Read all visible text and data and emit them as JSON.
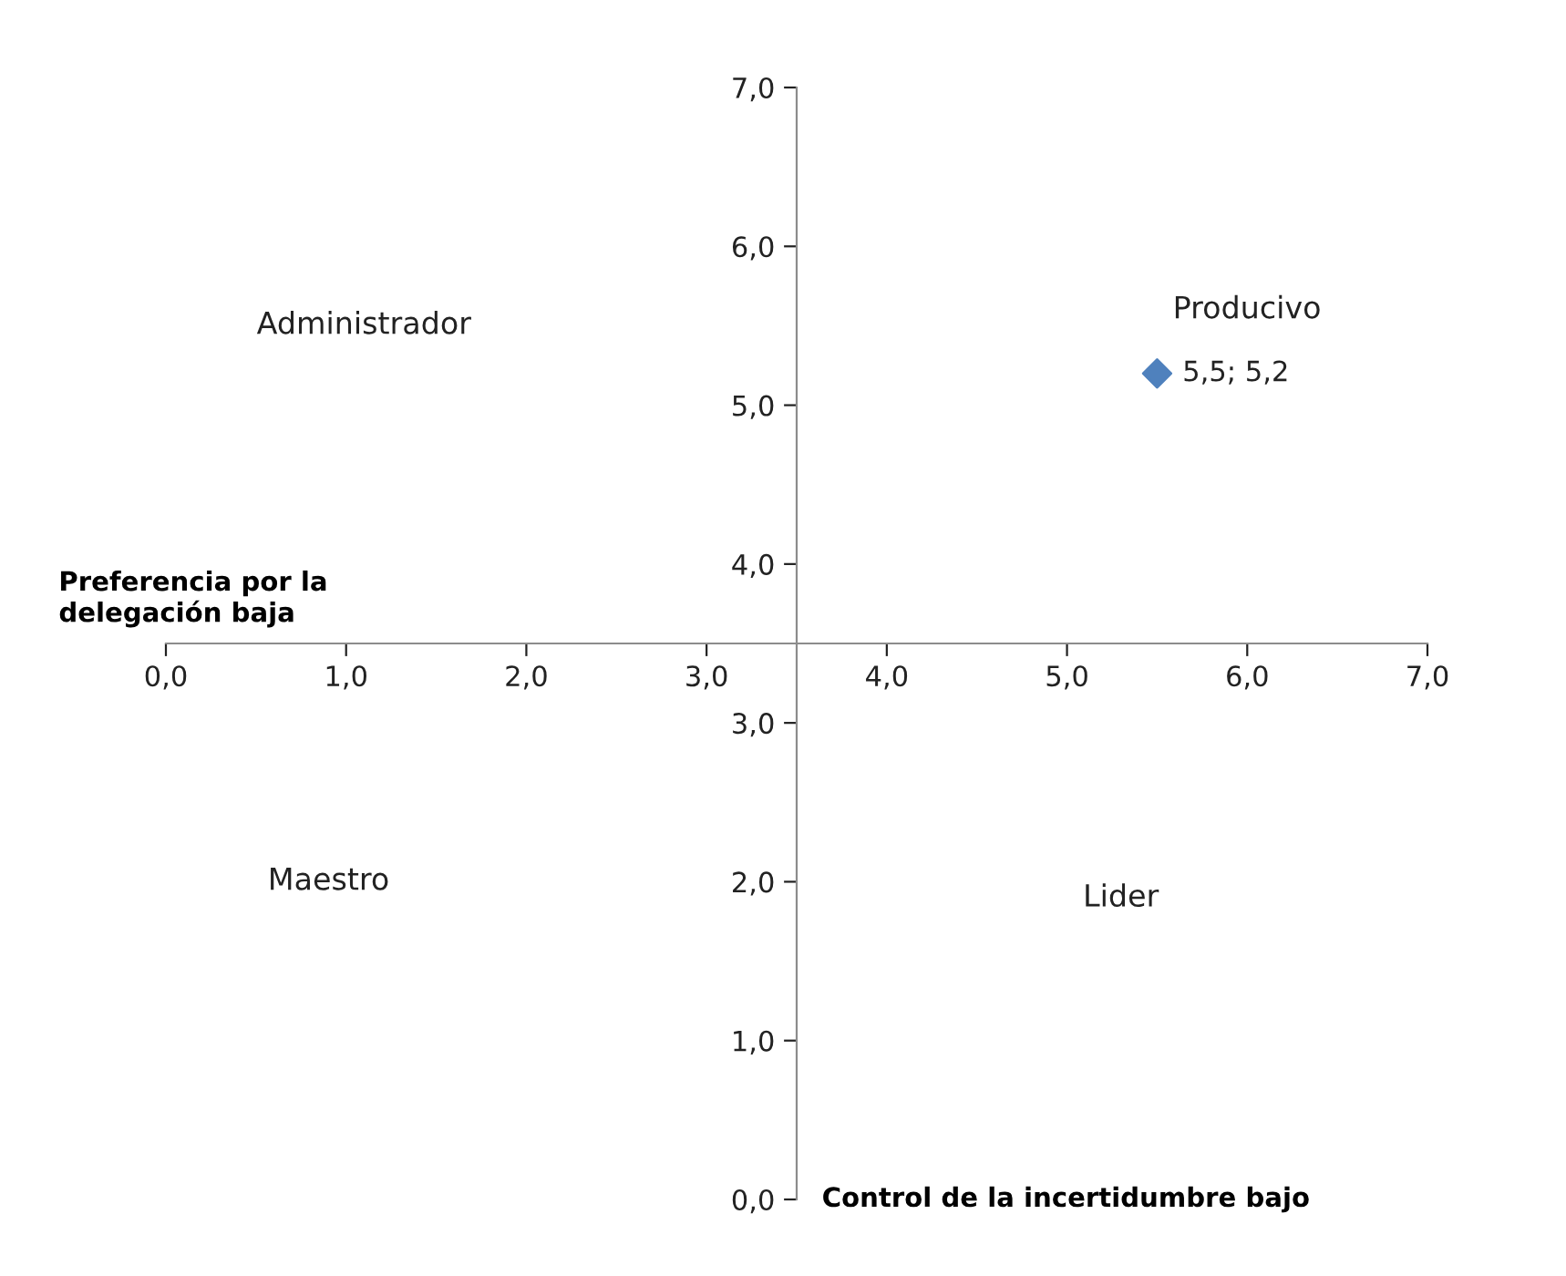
{
  "chart_data": {
    "type": "scatter",
    "x": [
      5.5
    ],
    "series": [
      {
        "color": "#4f81bd",
        "values": [
          5.2
        ],
        "value_labels": [
          "5,5; 5,2"
        ]
      }
    ],
    "marker": "diamond",
    "xlim": [
      0,
      7
    ],
    "ylim": [
      0,
      7
    ],
    "xticks": [
      {
        "value": 0,
        "label": "0,0"
      },
      {
        "value": 1,
        "label": "1,0"
      },
      {
        "value": 2,
        "label": "2,0"
      },
      {
        "value": 3,
        "label": "3,0"
      },
      {
        "value": 4,
        "label": "4,0"
      },
      {
        "value": 5,
        "label": "5,0"
      },
      {
        "value": 6,
        "label": "6,0"
      },
      {
        "value": 7,
        "label": "7,0"
      }
    ],
    "yticks": [
      {
        "value": 0,
        "label": "0,0"
      },
      {
        "value": 1,
        "label": "1,0"
      },
      {
        "value": 2,
        "label": "2,0"
      },
      {
        "value": 3,
        "label": "3,0"
      },
      {
        "value": 4,
        "label": "4,0"
      },
      {
        "value": 5,
        "label": "5,0"
      },
      {
        "value": 6,
        "label": "6,0"
      },
      {
        "value": 7,
        "label": "7,0"
      }
    ],
    "annotations": [
      "Administrador",
      "Producivo",
      "Maestro",
      "Lider",
      "Preferencia por la delegación baja",
      "Control de la incertidumbre bajo"
    ],
    "grid": false,
    "legend": false
  }
}
